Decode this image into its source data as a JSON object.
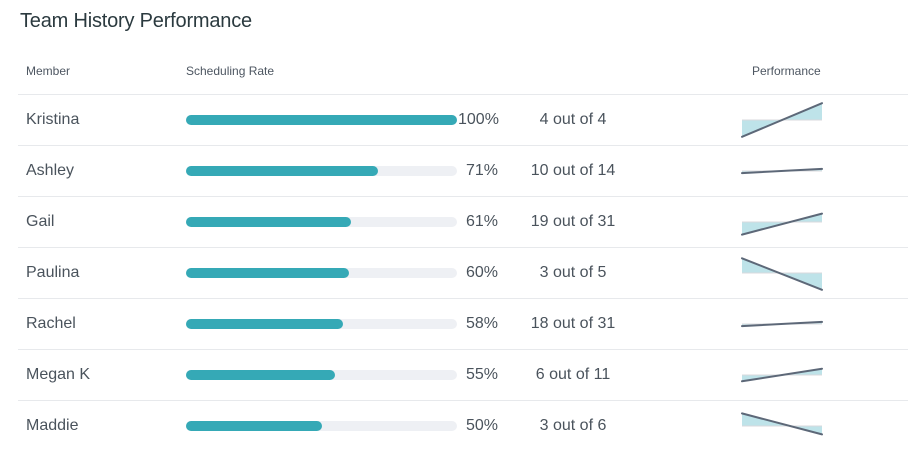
{
  "title": "Team History Performance",
  "headers": {
    "member": "Member",
    "rate": "Scheduling Rate",
    "performance": "Performance"
  },
  "colors": {
    "bar": "#35a9b6",
    "track": "#eef0f4",
    "line": "#5d6878",
    "area": "#b7e0e7",
    "ref": "#d8dadd"
  },
  "members": [
    {
      "name": "Kristina",
      "pct_label": "100%",
      "rate": 1.0,
      "count": "4 out of 4",
      "trend": [
        0.1,
        0.9
      ]
    },
    {
      "name": "Ashley",
      "pct_label": "71%",
      "rate": 0.71,
      "count": "10 out of 14",
      "trend": [
        0.45,
        0.55
      ]
    },
    {
      "name": "Gail",
      "pct_label": "61%",
      "rate": 0.61,
      "count": "19 out of 31",
      "trend": [
        0.2,
        0.7
      ]
    },
    {
      "name": "Paulina",
      "pct_label": "60%",
      "rate": 0.6,
      "count": "3 out of 5",
      "trend": [
        0.85,
        0.1
      ]
    },
    {
      "name": "Rachel",
      "pct_label": "58%",
      "rate": 0.58,
      "count": "18 out of 31",
      "trend": [
        0.45,
        0.55
      ]
    },
    {
      "name": "Megan K",
      "pct_label": "55%",
      "rate": 0.55,
      "count": "6 out of 11",
      "trend": [
        0.35,
        0.65
      ]
    },
    {
      "name": "Maddie",
      "pct_label": "50%",
      "rate": 0.5,
      "count": "3 out of 6",
      "trend": [
        0.8,
        0.3
      ]
    }
  ]
}
